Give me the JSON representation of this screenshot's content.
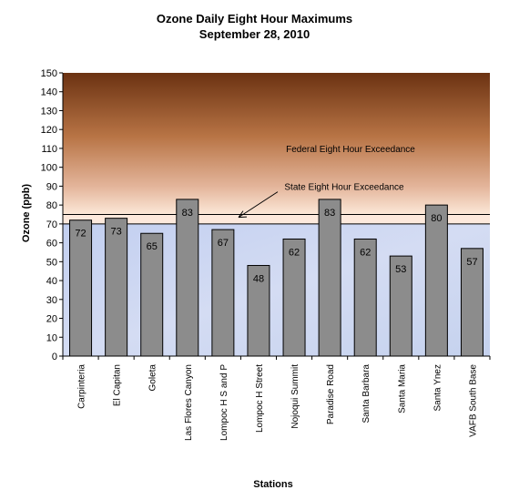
{
  "chart_data": {
    "type": "bar",
    "title": "Ozone Daily Eight Hour Maximums",
    "subtitle": "September 28, 2010",
    "xlabel": "Stations",
    "ylabel": "Ozone (ppb)",
    "ylim": [
      0,
      150
    ],
    "yticks": [
      0,
      10,
      20,
      30,
      40,
      50,
      60,
      70,
      80,
      90,
      100,
      110,
      120,
      130,
      140,
      150
    ],
    "categories": [
      "Carpinteria",
      "El Capitan",
      "Goleta",
      "Las Flores Canyon",
      "Lompoc H S and P",
      "Lompoc H Street",
      "Nojoqui Summit",
      "Paradise Road",
      "Santa Barbara",
      "Santa Maria",
      "Santa Ynez",
      "VAFB South Base"
    ],
    "values": [
      72,
      73,
      65,
      83,
      67,
      48,
      62,
      83,
      62,
      53,
      80,
      57
    ],
    "data_labels": [
      "72",
      "73",
      "65",
      "83",
      "67",
      "48",
      "62",
      "83",
      "62",
      "53",
      "80",
      "57"
    ],
    "thresholds": [
      {
        "name": "Federal Eight Hour Exceedance",
        "value": 75
      },
      {
        "name": "State Eight Hour Exceedance",
        "value": 70
      }
    ],
    "colors": {
      "bar": "#8c8c8c",
      "below_standard": "#c6d3ef",
      "above_standard_top": "#6b3212",
      "above_standard_bottom": "#fce8d8"
    },
    "grid": false,
    "legend": "none"
  }
}
